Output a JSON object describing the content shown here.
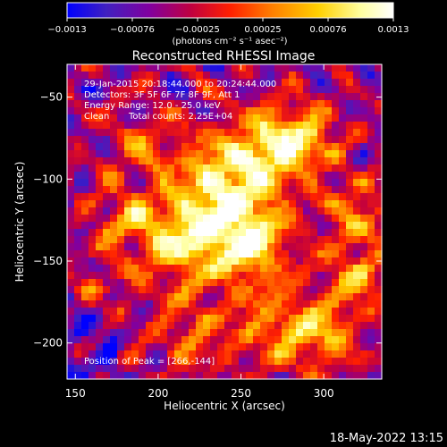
{
  "chart_data": {
    "type": "heatmap",
    "title": "Reconstructed RHESSI Image",
    "xlabel": "Heliocentric X (arcsec)",
    "ylabel": "Heliocentric Y (arcsec)",
    "xlim": [
      145,
      335
    ],
    "ylim": [
      -222,
      -30
    ],
    "xticks": [
      150,
      200,
      250,
      300
    ],
    "yticks": [
      -50,
      -100,
      -150,
      -200
    ],
    "xtick_labels": [
      "150",
      "200",
      "250",
      "300"
    ],
    "ytick_labels": [
      "−50",
      "−100",
      "−150",
      "−200"
    ],
    "colorbar": {
      "range": [
        -0.0013,
        0.0013
      ],
      "tick_labels": [
        "−0.0013",
        "−0.00076",
        "−0.00025",
        "0.00025",
        "0.00076",
        "0.0013"
      ],
      "units_label": "(photons cm⁻² s⁻¹ asec⁻²)",
      "colormap": "blue-purple-red-yellow-white"
    },
    "annotations": {
      "time_range": "29-Jan-2015 20:18:44.000 to 20:24:44.000",
      "detectors": "Detectors: 3F 5F 6F 7F 8F 9F, Att 1",
      "energy_range": "Energy Range: 12.0 - 25.0 keV",
      "method": "Clean",
      "total_counts": "Total counts: 2.25E+04",
      "peak_position": "Position of Peak = [266,-144]"
    },
    "peak": {
      "x": 266,
      "y": -144
    },
    "timestamp": "18-May-2022 13:15"
  },
  "colors": {
    "background": "#000000",
    "text": "#ffffff",
    "colormap_stops": [
      "#0000ff",
      "#4020c0",
      "#8000a0",
      "#c00040",
      "#ff2000",
      "#ff8000",
      "#ffd000",
      "#ffffa0",
      "#ffffff"
    ]
  }
}
